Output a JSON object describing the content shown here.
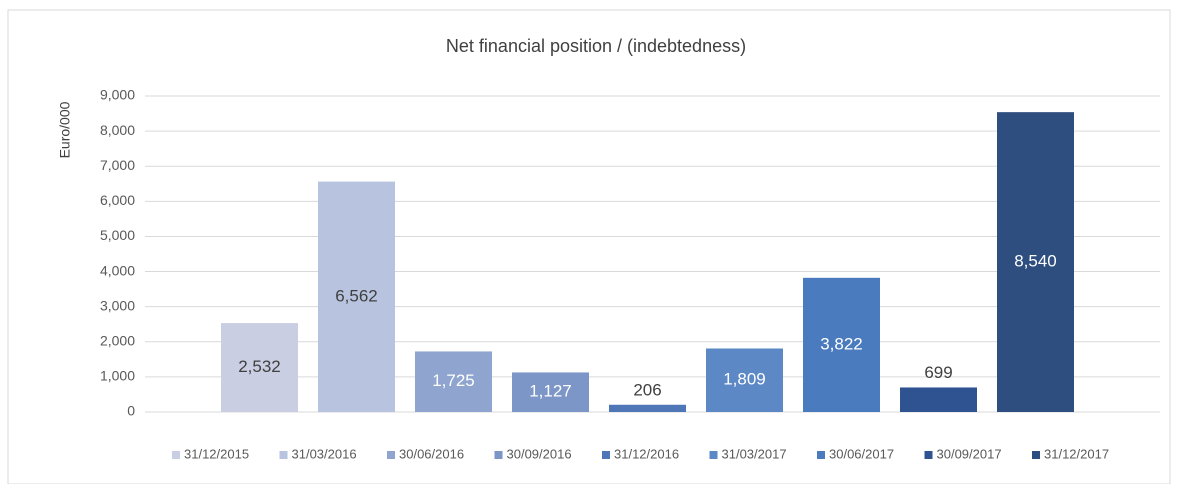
{
  "chart_data": {
    "type": "bar",
    "title": "Net financial position / (indebtedness)",
    "ylabel": "Euro/000",
    "categories": [
      ""
    ],
    "series": [
      {
        "name": "31/12/2015",
        "color": "#c9cee2",
        "values": [
          2532
        ],
        "value_labels": [
          "2,532"
        ]
      },
      {
        "name": "31/03/2016",
        "color": "#b7c3df",
        "values": [
          6562
        ],
        "value_labels": [
          "6,562"
        ]
      },
      {
        "name": "30/06/2016",
        "color": "#8fa5cf",
        "values": [
          1725
        ],
        "value_labels": [
          "1,725"
        ]
      },
      {
        "name": "30/09/2016",
        "color": "#7c96c8",
        "values": [
          1127
        ],
        "value_labels": [
          "1,127"
        ]
      },
      {
        "name": "31/12/2016",
        "color": "#4f77b8",
        "values": [
          206
        ],
        "value_labels": [
          "206"
        ]
      },
      {
        "name": "31/03/2017",
        "color": "#5d88c6",
        "values": [
          1809
        ],
        "value_labels": [
          "1,809"
        ]
      },
      {
        "name": "30/06/2017",
        "color": "#4a7bbf",
        "values": [
          3822
        ],
        "value_labels": [
          "3,822"
        ]
      },
      {
        "name": "30/09/2017",
        "color": "#2f5391",
        "values": [
          699
        ],
        "value_labels": [
          "699"
        ]
      },
      {
        "name": "31/12/2017",
        "color": "#2e4e80",
        "values": [
          8540
        ],
        "value_labels": [
          "8,540"
        ]
      }
    ],
    "ylim": [
      0,
      9000
    ],
    "yticks": [
      0,
      {
        "value": 1000,
        "label": "1,000"
      },
      {
        "value": 2000,
        "label": "2,000"
      },
      {
        "value": 3000,
        "label": "3,000"
      },
      {
        "value": 4000,
        "label": "4,000"
      },
      {
        "value": 5000,
        "label": "5,000"
      },
      {
        "value": 6000,
        "label": "6,000"
      },
      {
        "value": 7000,
        "label": "7,000"
      },
      {
        "value": 8000,
        "label": "8,000"
      },
      {
        "value": 9000,
        "label": "9,000"
      }
    ],
    "grid": true,
    "legend": "bottom"
  }
}
